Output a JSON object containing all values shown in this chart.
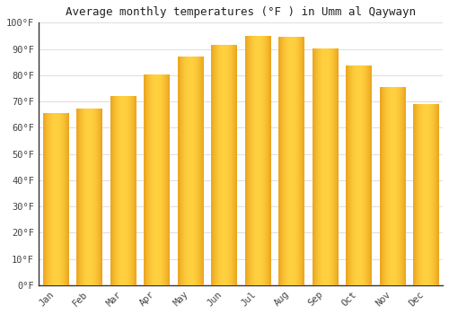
{
  "title": "Average monthly temperatures (°F ) in Umm al Qaywayn",
  "months": [
    "Jan",
    "Feb",
    "Mar",
    "Apr",
    "May",
    "Jun",
    "Jul",
    "Aug",
    "Sep",
    "Oct",
    "Nov",
    "Dec"
  ],
  "values": [
    65.5,
    67,
    72,
    80,
    87,
    91.5,
    95,
    94.5,
    90,
    83.5,
    75.5,
    69
  ],
  "bar_color_center": "#FFB800",
  "bar_color_edge": "#FF8C00",
  "background_color": "#FFFFFF",
  "plot_bg_color": "#FFFFFF",
  "grid_color": "#DDDDDD",
  "ylim": [
    0,
    100
  ],
  "yticks": [
    0,
    10,
    20,
    30,
    40,
    50,
    60,
    70,
    80,
    90,
    100
  ],
  "ytick_labels": [
    "0°F",
    "10°F",
    "20°F",
    "30°F",
    "40°F",
    "50°F",
    "60°F",
    "70°F",
    "80°F",
    "90°F",
    "100°F"
  ],
  "title_fontsize": 9,
  "tick_fontsize": 7.5,
  "font_family": "monospace",
  "bar_width": 0.75
}
